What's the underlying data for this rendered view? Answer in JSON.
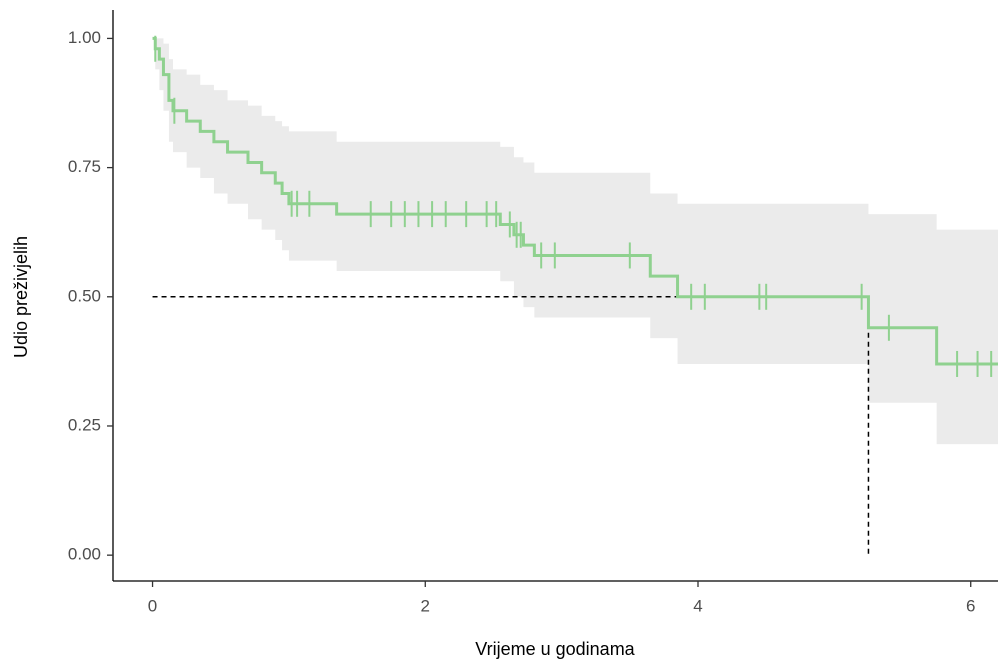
{
  "chart_data": {
    "type": "km",
    "x_label": "Vrijeme u godinama",
    "y_label": "Udio preživjelih",
    "x": [
      0,
      0.02,
      0.05,
      0.08,
      0.12,
      0.15,
      0.25,
      0.35,
      0.45,
      0.55,
      0.7,
      0.8,
      0.9,
      0.95,
      1.0,
      1.35,
      2.55,
      2.65,
      2.72,
      2.8,
      3.65,
      3.85,
      5.25,
      5.75
    ],
    "values": [
      1,
      0.98,
      0.96,
      0.93,
      0.88,
      0.86,
      0.84,
      0.82,
      0.8,
      0.78,
      0.76,
      0.74,
      0.72,
      0.7,
      0.68,
      0.66,
      0.64,
      0.62,
      0.6,
      0.58,
      0.54,
      0.5,
      0.44,
      0.37
    ],
    "ci_upper": [
      1,
      1,
      1,
      0.99,
      0.96,
      0.94,
      0.93,
      0.91,
      0.9,
      0.88,
      0.87,
      0.85,
      0.84,
      0.83,
      0.82,
      0.8,
      0.79,
      0.77,
      0.76,
      0.74,
      0.7,
      0.68,
      0.66,
      0.63
    ],
    "ci_lower": [
      1,
      0.94,
      0.9,
      0.86,
      0.8,
      0.78,
      0.75,
      0.73,
      0.7,
      0.68,
      0.65,
      0.63,
      0.61,
      0.59,
      0.57,
      0.55,
      0.53,
      0.5,
      0.48,
      0.46,
      0.42,
      0.37,
      0.295,
      0.215
    ],
    "censor_x": [
      0.02,
      0.16,
      1.02,
      1.06,
      1.15,
      1.6,
      1.75,
      1.85,
      1.95,
      2.05,
      2.15,
      2.3,
      2.45,
      2.52,
      2.62,
      2.67,
      2.7,
      2.85,
      2.95,
      3.5,
      3.95,
      4.05,
      4.45,
      4.5,
      5.2,
      5.4,
      5.9,
      6.05,
      6.15
    ],
    "censor_y": [
      0.98,
      0.86,
      0.68,
      0.68,
      0.68,
      0.66,
      0.66,
      0.66,
      0.66,
      0.66,
      0.66,
      0.66,
      0.66,
      0.66,
      0.64,
      0.62,
      0.62,
      0.58,
      0.58,
      0.58,
      0.5,
      0.5,
      0.5,
      0.5,
      0.5,
      0.44,
      0.37,
      0.37,
      0.37
    ],
    "median": {
      "x": 5.25,
      "y": 0.5
    },
    "color": "#8fd18f",
    "ci_color": "#ebebeb",
    "xlim": [
      -0.29,
      6.2
    ],
    "ylim": [
      -0.05,
      1.055
    ],
    "xticks": [
      0,
      2,
      4,
      6
    ],
    "yticks": [
      {
        "value": 0,
        "label": "0.00"
      },
      {
        "value": 0.25,
        "label": "0.25"
      },
      {
        "value": 0.5,
        "label": "0.50"
      },
      {
        "value": 0.75,
        "label": "0.75"
      },
      {
        "value": 1,
        "label": "1.00"
      }
    ]
  }
}
